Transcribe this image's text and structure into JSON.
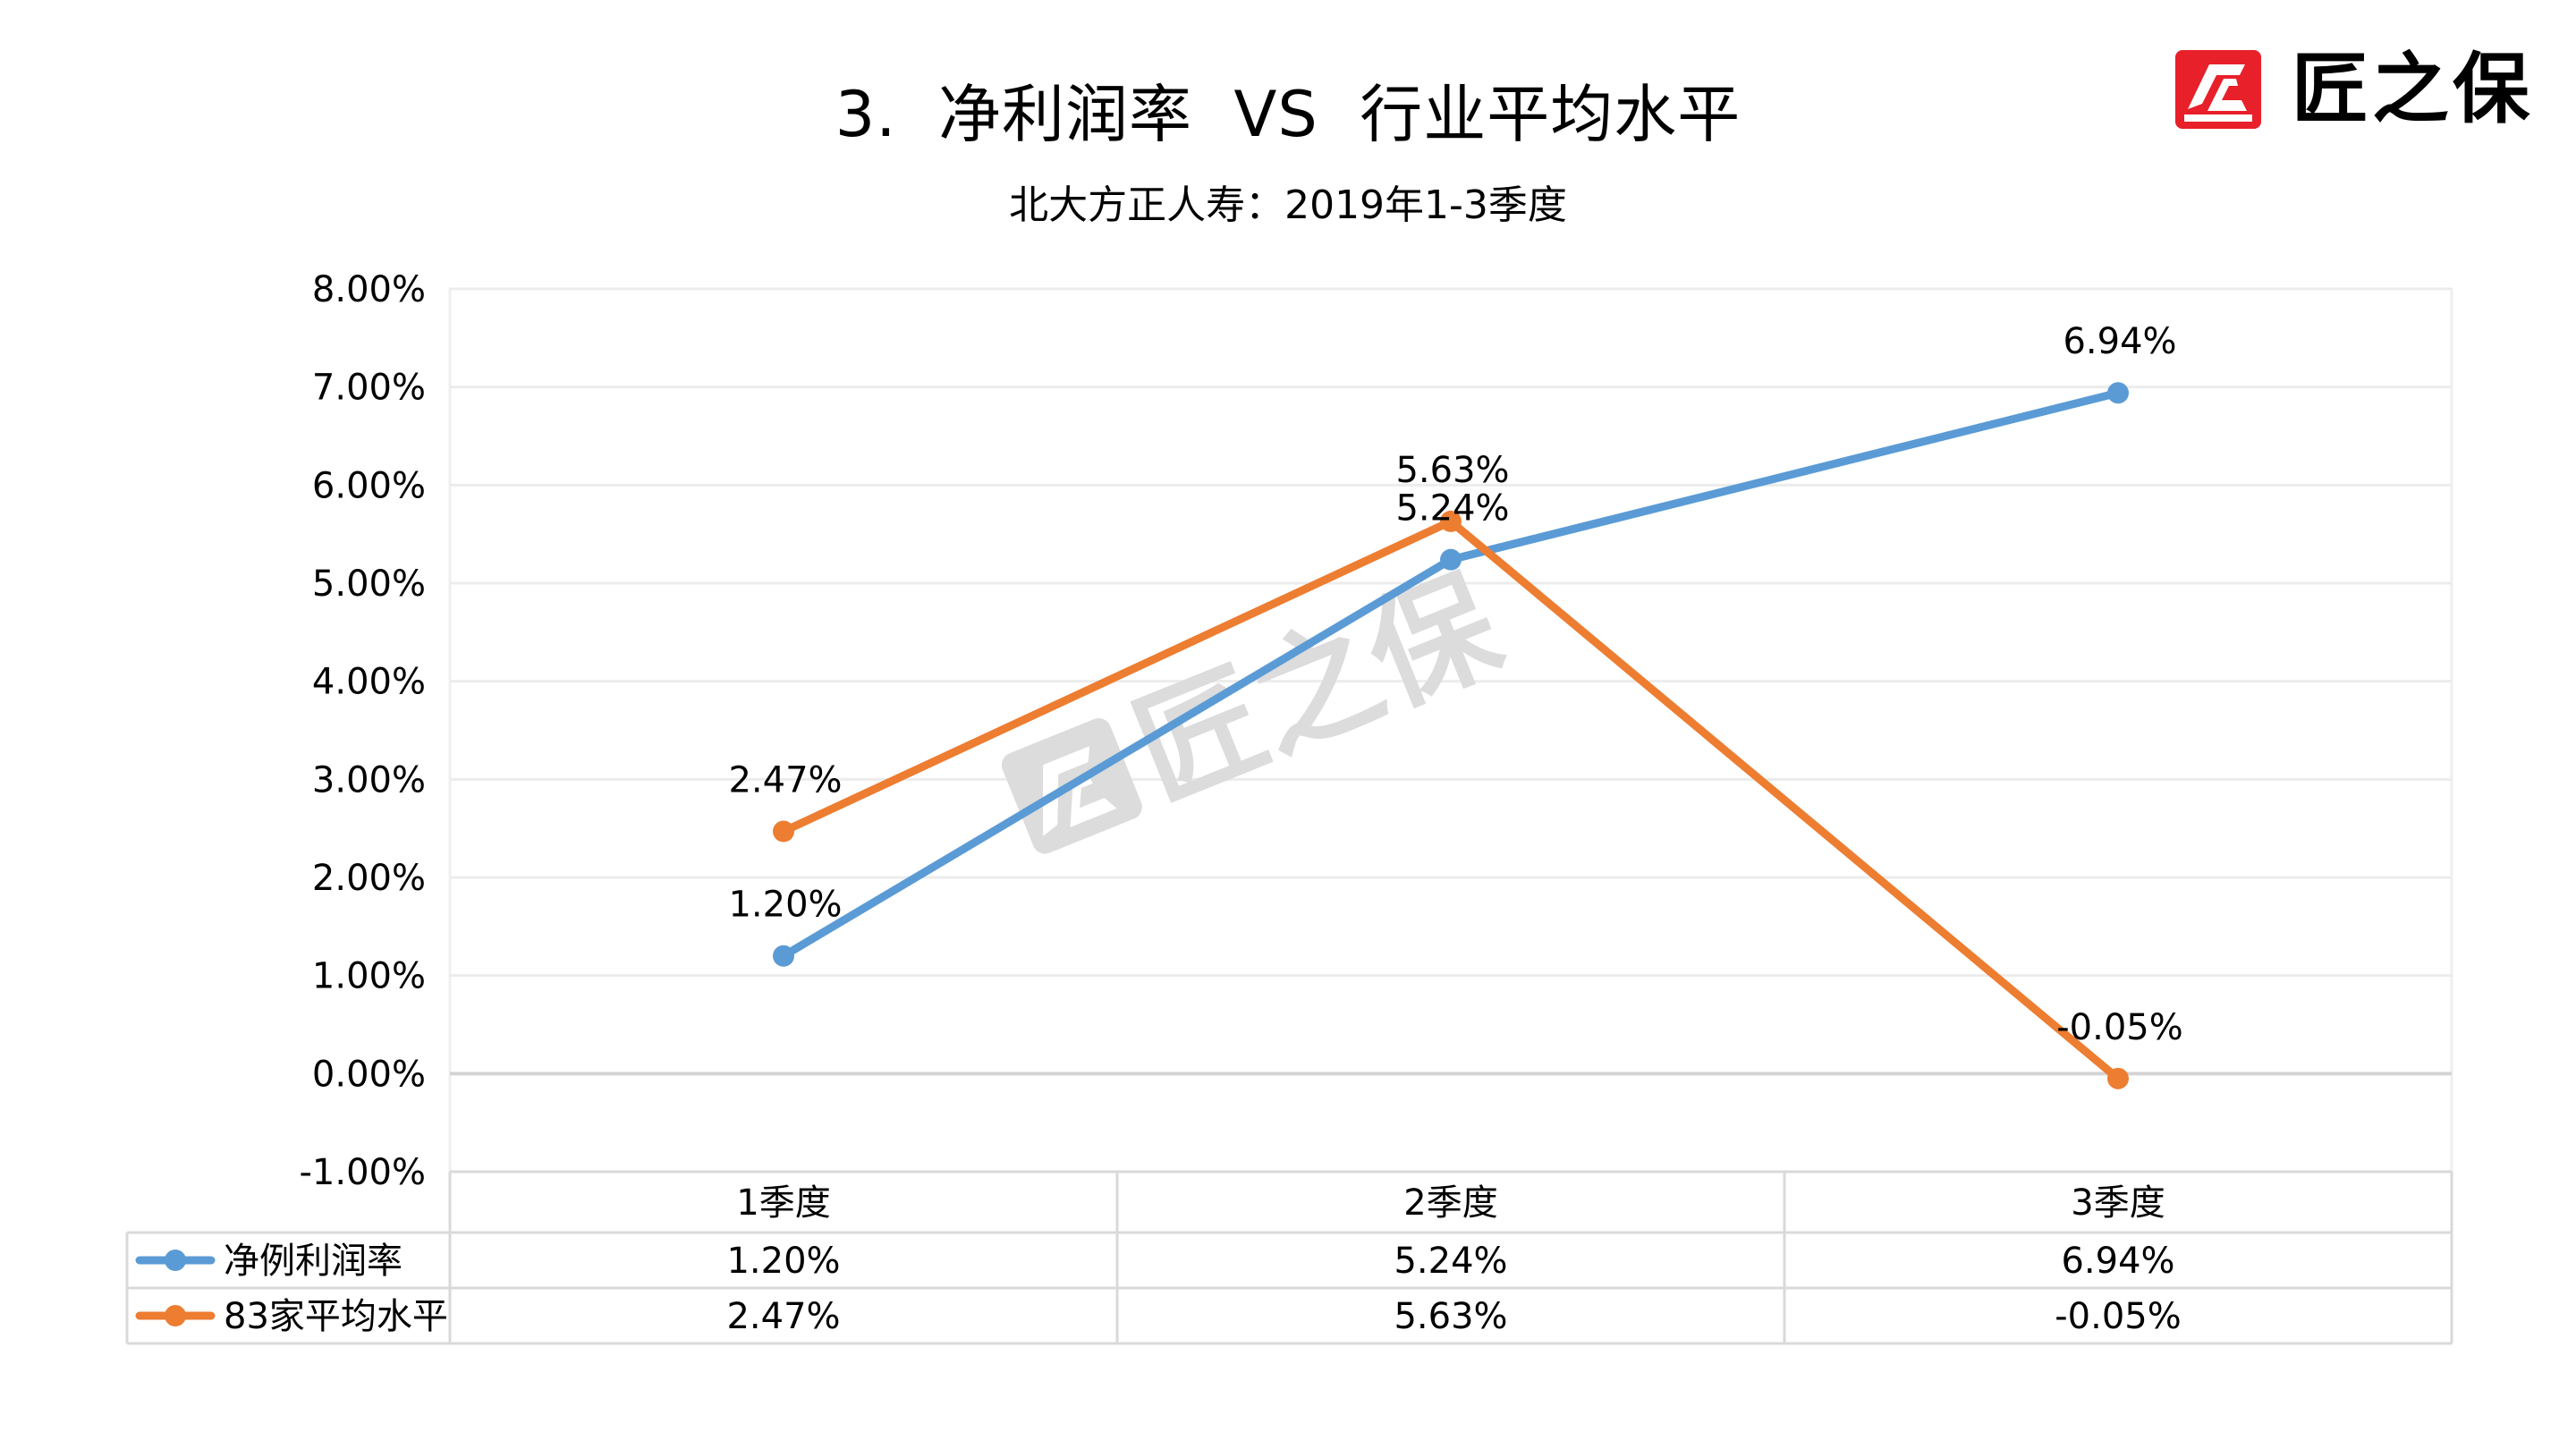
{
  "header": {
    "title": "3.  净利润率  VS  行业平均水平",
    "subtitle": "北大方正人寿：2019年1-3季度",
    "logo_text": "匠之保",
    "logo_icon": "jiangzhibao-logo-icon",
    "brand_color": "#e8202a"
  },
  "watermark": {
    "text": "匠之保",
    "color": "#dcdcdc"
  },
  "table": {
    "categories": [
      "1季度",
      "2季度",
      "3季度"
    ],
    "rows": [
      {
        "legend": "净例利润率",
        "values": [
          "1.20%",
          "5.24%",
          "6.94%"
        ],
        "color": "#5b9bd5"
      },
      {
        "legend": "83家平均水平",
        "values": [
          "2.47%",
          "5.63%",
          "-0.05%"
        ],
        "color": "#ed7d31"
      }
    ]
  },
  "chart_data": {
    "type": "line",
    "title": "3.  净利润率  VS  行业平均水平",
    "subtitle": "北大方正人寿：2019年1-3季度",
    "categories": [
      "1季度",
      "2季度",
      "3季度"
    ],
    "series": [
      {
        "name": "净例利润率",
        "values": [
          1.2,
          5.24,
          6.94
        ],
        "labels": [
          "1.20%",
          "5.24%",
          "6.94%"
        ],
        "color": "#5b9bd5"
      },
      {
        "name": "83家平均水平",
        "values": [
          2.47,
          5.63,
          -0.05
        ],
        "labels": [
          "2.47%",
          "5.63%",
          "-0.05%"
        ],
        "color": "#ed7d31"
      }
    ],
    "xlabel": "",
    "ylabel": "",
    "ylim": [
      -1,
      8
    ],
    "yticks": [
      "8.00%",
      "7.00%",
      "6.00%",
      "5.00%",
      "4.00%",
      "3.00%",
      "2.00%",
      "1.00%",
      "0.00%",
      "-1.00%"
    ],
    "ytick_values": [
      8,
      7,
      6,
      5,
      4,
      3,
      2,
      1,
      0,
      -1
    ],
    "grid": true,
    "legend_position": "data-table",
    "data_table": true,
    "markers": true
  }
}
